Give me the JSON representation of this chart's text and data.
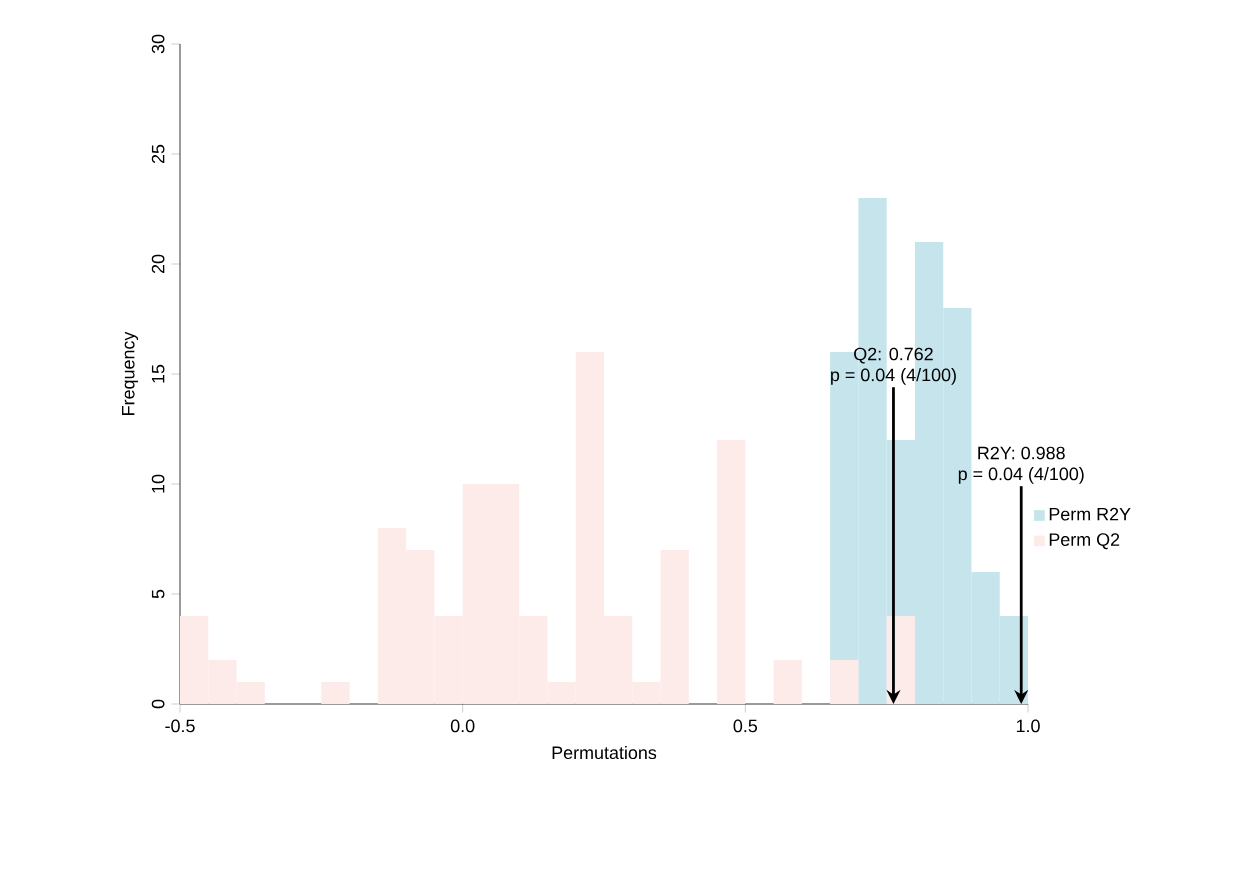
{
  "chart_data": {
    "type": "histogram",
    "xlabel": "Permutations",
    "ylabel": "Frequency",
    "bins": [
      -0.5,
      -0.45,
      -0.4,
      -0.35,
      -0.3,
      -0.25,
      -0.2,
      -0.15,
      -0.1,
      -0.05,
      0,
      0.05,
      0.1,
      0.15,
      0.2,
      0.25,
      0.3,
      0.35,
      0.4,
      0.45,
      0.5,
      0.55,
      0.6,
      0.65,
      0.7,
      0.75,
      0.8,
      0.85,
      0.9,
      0.95,
      1.0
    ],
    "series": [
      {
        "name": "Perm R2Y",
        "color": "#c6e4ec",
        "values": [
          0,
          0,
          0,
          0,
          0,
          0,
          0,
          0,
          0,
          0,
          0,
          0,
          0,
          0,
          0,
          0,
          0,
          0,
          0,
          0,
          0,
          0,
          0,
          16,
          23,
          12,
          21,
          18,
          6,
          4
        ]
      },
      {
        "name": "Perm Q2",
        "color": "#fdebe9",
        "values": [
          4,
          2,
          1,
          0,
          0,
          1,
          0,
          8,
          7,
          4,
          10,
          10,
          4,
          1,
          16,
          4,
          1,
          7,
          0,
          12,
          0,
          2,
          0,
          2,
          0,
          4,
          0,
          0,
          0,
          0
        ]
      }
    ],
    "xlim": [
      -0.5,
      1.0
    ],
    "ylim": [
      0,
      30
    ],
    "xticks": [
      -0.5,
      {
        "value": 0,
        "label": "0.0"
      },
      0.5,
      {
        "value": 1,
        "label": "1.0"
      }
    ],
    "yticks": [
      0,
      5,
      10,
      15,
      20,
      25,
      30
    ],
    "legend": "right",
    "marker": "square",
    "grid": false,
    "ref_lines": [
      {
        "axis": "x",
        "value": 0.762,
        "label": "Q2: 0.762"
      },
      {
        "axis": "x",
        "value": 0.988,
        "label": "R2Y: 0.988"
      }
    ],
    "annotations": [
      "p = 0.04 (4/100)",
      "p = 0.04 (4/100)"
    ]
  }
}
